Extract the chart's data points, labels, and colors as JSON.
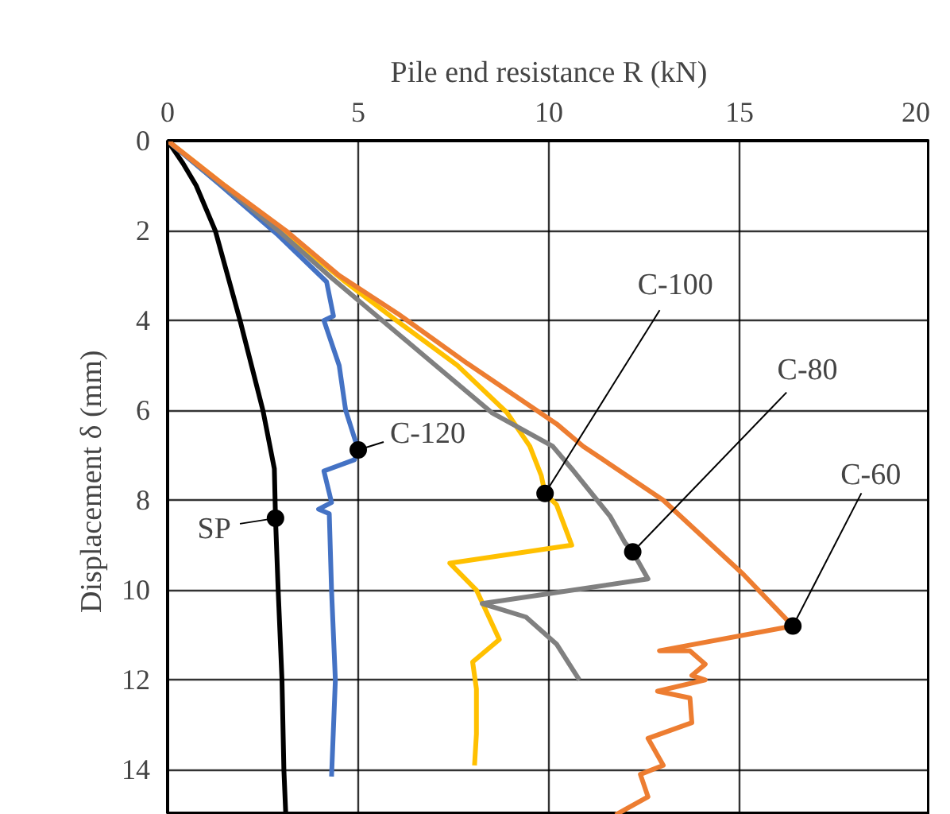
{
  "chart_data": {
    "type": "line",
    "xlabel": "Pile end resistance R (kN)",
    "ylabel": "Displacement  δ (mm)",
    "xlim": [
      0,
      20
    ],
    "xticks": [
      0,
      5,
      10,
      15,
      20
    ],
    "ylim": [
      15,
      0
    ],
    "yticks": [
      0,
      2,
      4,
      6,
      8,
      10,
      12,
      14
    ],
    "grid": true,
    "marker": "none",
    "line_style": "solid",
    "series": [
      {
        "color": "#000000",
        "x": [
          0,
          0.4,
          0.75,
          1.25,
          1.9,
          2.5,
          2.8,
          2.83,
          2.9,
          3.0,
          3.05,
          3.1
        ],
        "values": [
          0,
          0.5,
          1,
          2,
          4,
          6,
          7.3,
          8.4,
          10,
          12,
          14,
          15
        ]
      },
      {
        "color": "#4472c4",
        "x": [
          0,
          1.4,
          2.9,
          4.17,
          4.35,
          4.1,
          4.5,
          4.67,
          5.0,
          4.9,
          4.1,
          4.3,
          3.96,
          4.24,
          4.3,
          4.4,
          4.3
        ],
        "values": [
          0,
          1,
          2.1,
          3.14,
          3.9,
          4.0,
          5,
          6,
          6.88,
          7.1,
          7.35,
          8.05,
          8.2,
          8.3,
          10,
          12,
          14.15
        ]
      },
      {
        "color": "#ffc000",
        "x": [
          0,
          1.5,
          3.0,
          4.6,
          6.0,
          7.6,
          8.9,
          9.5,
          9.8,
          9.9,
          10.2,
          10.6,
          7.4,
          8.1,
          8.7,
          8.0,
          8.1,
          8.1,
          8.05
        ],
        "values": [
          0,
          1,
          2,
          3.1,
          4,
          5,
          6.05,
          6.8,
          7.45,
          7.85,
          8.1,
          9.0,
          9.4,
          10.0,
          11.1,
          11.6,
          12.2,
          13.2,
          13.9
        ]
      },
      {
        "color": "#808080",
        "x": [
          0,
          1.45,
          2.9,
          4.3,
          5.7,
          7.1,
          8.5,
          10.1,
          10.6,
          11.6,
          12.0,
          12.2,
          12.6,
          8.25,
          9.4,
          10.2,
          10.8
        ],
        "values": [
          0,
          1,
          2,
          3.05,
          4.05,
          5.05,
          6.05,
          6.8,
          7.3,
          8.35,
          8.95,
          9.15,
          9.75,
          10.3,
          10.6,
          11.2,
          12.0
        ]
      },
      {
        "color": "#ed7d31",
        "x": [
          0,
          1.5,
          3.1,
          4.5,
          6.04,
          7.85,
          10.2,
          10.9,
          13.0,
          15.1,
          16.4,
          12.9,
          13.7,
          14.1,
          13.75,
          14.1,
          12.85,
          13.7,
          13.75,
          12.6,
          13.0,
          12.4,
          12.6,
          11.75
        ],
        "values": [
          0,
          1,
          2,
          3.0,
          3.85,
          4.95,
          6.3,
          6.8,
          8.0,
          9.65,
          10.8,
          11.35,
          11.35,
          11.65,
          11.9,
          12.0,
          12.25,
          12.4,
          12.95,
          13.3,
          13.9,
          14.1,
          14.6,
          15.0
        ]
      }
    ],
    "annotations": [
      {
        "text": "SP",
        "x": 2.83,
        "y": 8.4
      },
      {
        "text": "C-120",
        "x": 5.0,
        "y": 6.88
      },
      {
        "text": "C-100",
        "x": 9.9,
        "y": 7.85
      },
      {
        "text": "C-80",
        "x": 12.2,
        "y": 9.15
      },
      {
        "text": "C-60",
        "x": 16.4,
        "y": 10.8
      }
    ]
  }
}
